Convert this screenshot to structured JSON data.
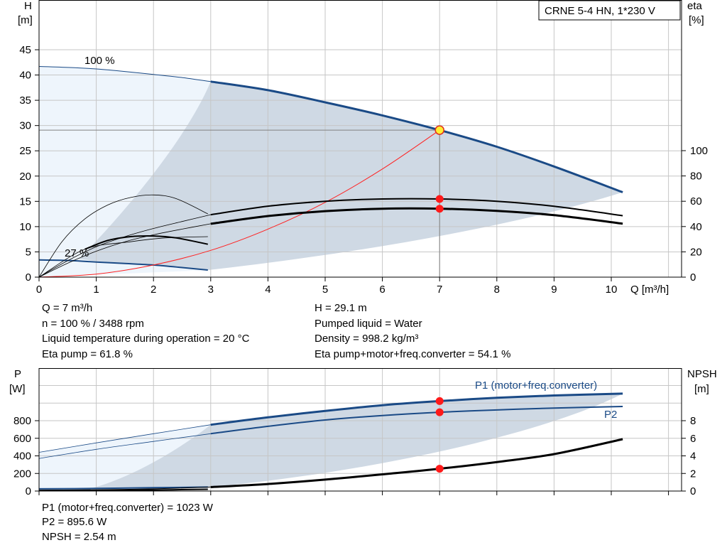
{
  "chart_data": [
    {
      "type": "line",
      "title": "CRNE 5-4 HN, 1*230 V",
      "xlabel": "Q [m³/h]",
      "ylabel": [
        "H",
        "[m]"
      ],
      "y2label": [
        "eta",
        "[%]"
      ],
      "xlim": [
        0,
        11.1
      ],
      "ylim": [
        0,
        48
      ],
      "y2lim": [
        0,
        100
      ],
      "x_ticks": [
        0,
        1,
        2,
        3,
        4,
        5,
        6,
        7,
        8,
        9,
        10
      ],
      "y_ticks": [
        0,
        5,
        10,
        15,
        20,
        25,
        30,
        35,
        40,
        45
      ],
      "y2_ticks": [
        0,
        20,
        40,
        60,
        80,
        100
      ],
      "grid": true,
      "annotations": [
        "100 %",
        "27 %"
      ],
      "operating_point": {
        "x": 7,
        "y": 29.1
      },
      "series": [
        {
          "role": "head_100",
          "x": [
            3,
            4,
            5,
            6,
            7,
            8,
            9,
            10.2
          ],
          "y": [
            38.7,
            37.0,
            34.6,
            32.0,
            29.1,
            25.8,
            21.9,
            16.8
          ]
        },
        {
          "role": "head_100_ext",
          "x": [
            0,
            0.5,
            1,
            1.5,
            2,
            2.5,
            3
          ],
          "y": [
            41.7,
            41.5,
            41.2,
            40.7,
            40.1,
            39.5,
            38.7
          ]
        },
        {
          "role": "head_27",
          "x": [
            0,
            0.5,
            1,
            1.5,
            2,
            2.5,
            2.95
          ],
          "y": [
            3.4,
            3.3,
            3.0,
            2.7,
            2.4,
            1.9,
            1.4
          ]
        },
        {
          "role": "system_curve",
          "x": [
            0,
            1,
            2,
            3,
            4,
            5,
            6,
            7
          ],
          "y": [
            0,
            0.6,
            2.4,
            5.3,
            9.5,
            14.8,
            21.4,
            29.1
          ]
        },
        {
          "role": "eta_pump",
          "x": [
            3,
            4,
            5,
            6,
            7,
            8,
            9,
            10.2
          ],
          "y": [
            49.4,
            56.1,
            60.0,
            61.8,
            61.8,
            60.0,
            56.0,
            48.6
          ]
        },
        {
          "role": "eta_total",
          "x": [
            3,
            4,
            5,
            6,
            7,
            8,
            9,
            10.2
          ],
          "y": [
            42.2,
            48.3,
            52.2,
            54.1,
            54.1,
            52.4,
            49.0,
            42.3
          ]
        },
        {
          "role": "eta_pump_ext",
          "x": [
            0,
            0.5,
            1,
            1.5,
            2,
            2.5,
            3
          ],
          "y": [
            0,
            13,
            24,
            32,
            38.5,
            44,
            49.4
          ]
        },
        {
          "role": "eta_total_ext",
          "x": [
            0,
            0.5,
            1,
            1.5,
            2,
            2.5,
            3
          ],
          "y": [
            0,
            11,
            20.5,
            28,
            33.5,
            38,
            42.2
          ]
        },
        {
          "role": "eta_pump_27",
          "x": [
            0,
            0.4,
            0.8,
            1.2,
            1.6,
            2.0,
            2.4,
            2.95
          ],
          "y": [
            0,
            28,
            46,
            57,
            63,
            65,
            62,
            50
          ]
        },
        {
          "role": "eta_total_27",
          "x": [
            0.8,
            1.2,
            1.6,
            2.0,
            2.4,
            2.95
          ],
          "y": [
            22,
            29,
            32,
            32.5,
            31,
            26
          ]
        },
        {
          "role": "eta_pump_27_ext",
          "x": [
            0,
            0.8,
            1.6,
            2.2,
            2.95
          ],
          "y": [
            0,
            22,
            28,
            31,
            32
          ]
        }
      ],
      "points": [
        {
          "role": "eta_pump_point",
          "x": 7,
          "y": 61.8
        },
        {
          "role": "eta_total_point",
          "x": 7,
          "y": 54.1
        }
      ]
    },
    {
      "type": "line",
      "ylabel": [
        "P",
        "[W]"
      ],
      "y2label": [
        "NPSH",
        "[m]"
      ],
      "xlim": [
        0,
        11.1
      ],
      "ylim": [
        0,
        1300
      ],
      "y2lim": [
        0,
        13
      ],
      "y_ticks": [
        0,
        200,
        400,
        600,
        800
      ],
      "y2_ticks": [
        0,
        2,
        4,
        6,
        8
      ],
      "grid": true,
      "series": [
        {
          "name": "P1 (motor+freq.converter)",
          "x": [
            3,
            4,
            5,
            6,
            7,
            8,
            9,
            10.2
          ],
          "y": [
            754,
            838,
            911,
            976,
            1023,
            1060,
            1087,
            1108
          ]
        },
        {
          "name": "P2",
          "x": [
            3,
            4,
            5,
            6,
            7,
            8,
            9,
            10.2
          ],
          "y": [
            652,
            736,
            808,
            859,
            896,
            922,
            944,
            962
          ]
        },
        {
          "role": "p1_ext",
          "x": [
            0,
            1,
            2,
            3
          ],
          "y": [
            440,
            548,
            652,
            754
          ]
        },
        {
          "role": "p2_ext",
          "x": [
            0,
            1,
            2,
            3
          ],
          "y": [
            370,
            474,
            564,
            652
          ]
        },
        {
          "role": "p_27",
          "x": [
            0,
            1,
            2,
            2.95
          ],
          "y": [
            25,
            30,
            38,
            45
          ]
        },
        {
          "role": "npsh",
          "x": [
            0,
            1,
            2,
            3,
            4,
            5,
            6,
            7,
            8,
            9,
            10.2
          ],
          "y": [
            0.1,
            0.15,
            0.25,
            0.45,
            0.8,
            1.3,
            1.9,
            2.54,
            3.3,
            4.2,
            5.9
          ],
          "axis": "y2"
        },
        {
          "role": "npsh_27",
          "x": [
            0,
            1,
            2,
            2.95
          ],
          "y": [
            0.05,
            0.08,
            0.12,
            0.2
          ],
          "axis": "y2"
        }
      ],
      "points": [
        {
          "role": "p1_point",
          "x": 7,
          "y": 1023
        },
        {
          "role": "p2_point",
          "x": 7,
          "y": 896
        },
        {
          "role": "npsh_point",
          "x": 7,
          "y": 254
        }
      ]
    }
  ],
  "info_top": {
    "q": "Q = 7 m³/h",
    "n": "n = 100 % / 3488 rpm",
    "temp": "Liquid temperature during operation = 20 °C",
    "eta_pump": "Eta pump = 61.8 %",
    "h": "H = 29.1 m",
    "liquid": "Pumped liquid = Water",
    "density": "Density = 998.2 kg/m³",
    "eta_total": "Eta pump+motor+freq.converter = 54.1 %"
  },
  "info_bottom": {
    "p1": "P1 (motor+freq.converter) = 1023 W",
    "p2": "P2 = 895.6 W",
    "npsh": "NPSH = 2.54 m"
  },
  "colors": {
    "blue": "#1a4a86",
    "band_dark": "#cfd9e4",
    "band_light": "#eef5fc",
    "grid": "#c6c6c6",
    "system": "#ff2020",
    "point": "#ff1a1a",
    "op_fill": "#ffee33"
  }
}
